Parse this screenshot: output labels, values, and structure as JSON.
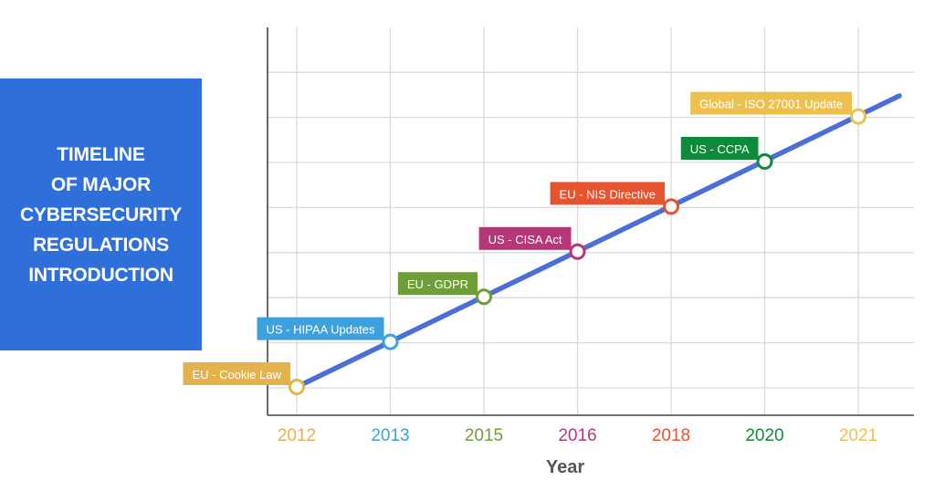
{
  "title": {
    "lines": [
      "TIMELINE",
      "OF MAJOR",
      "CYBERSECURITY",
      "REGULATIONS",
      "INTRODUCTION"
    ],
    "background": "#2f6fd9"
  },
  "chart_data": {
    "type": "line",
    "xlabel": "Year",
    "ylabel": "",
    "grid": true,
    "line_color": "#4a6fd8",
    "events": [
      {
        "year": "2012",
        "label": "EU - Cookie Law",
        "color": "#e3b24b"
      },
      {
        "year": "2013",
        "label": "US - HIPAA Updates",
        "color": "#3fa1dc"
      },
      {
        "year": "2015",
        "label": "EU - GDPR",
        "color": "#6f9d3a"
      },
      {
        "year": "2016",
        "label": "US - CISA Act",
        "color": "#b7367a"
      },
      {
        "year": "2018",
        "label": "EU - NIS Directive",
        "color": "#e6532d"
      },
      {
        "year": "2020",
        "label": "US - CCPA",
        "color": "#0f8a3c"
      },
      {
        "year": "2021",
        "label": "Global - ISO 27001 Update",
        "color": "#ecc14e"
      }
    ]
  }
}
